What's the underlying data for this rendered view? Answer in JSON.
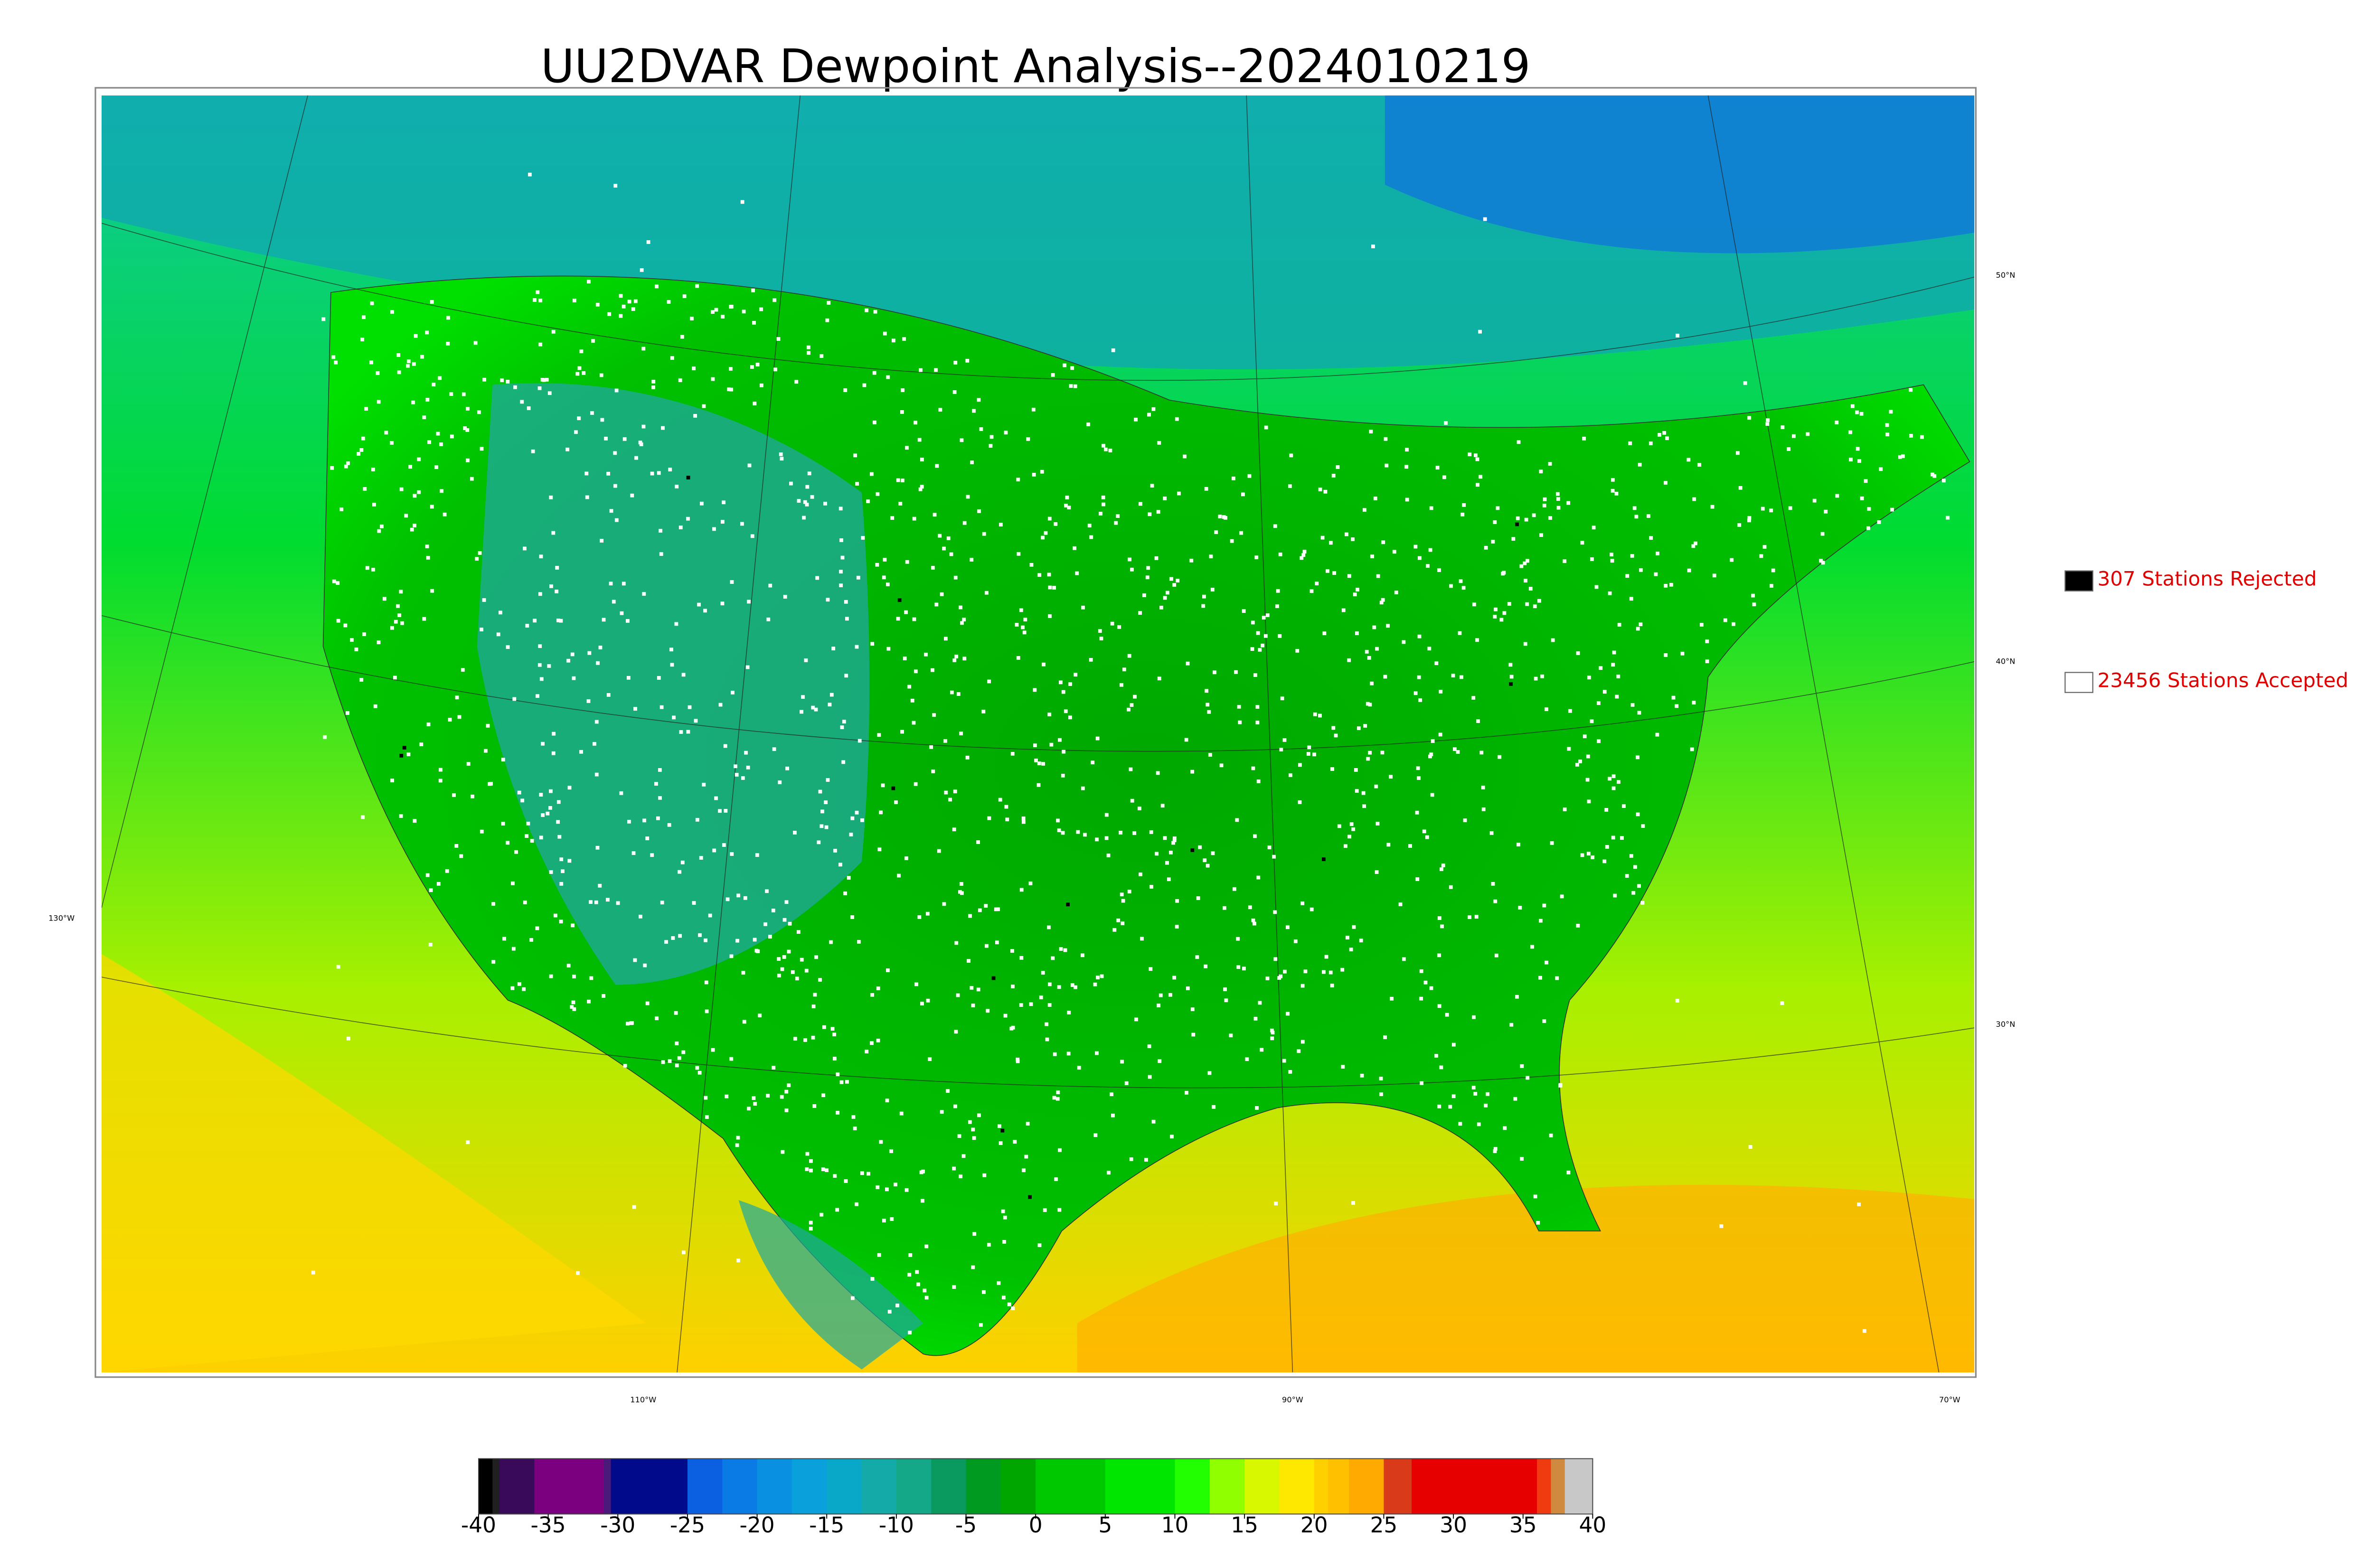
{
  "title": "UU2DVAR Dewpoint Analysis--2024010219",
  "map": {
    "lat_labels": [
      "50°N",
      "40°N",
      "30°N"
    ],
    "lon_labels": [
      "130°W",
      "110°W",
      "90°W",
      "70°W"
    ]
  },
  "legend": [
    {
      "label": "307 Stations Rejected",
      "color": "#000000"
    },
    {
      "label": "23456 Stations Accepted",
      "color": "#ffffff"
    }
  ],
  "colorbar": {
    "lim": [
      -40,
      40
    ],
    "ticks": [
      -40,
      -35,
      -30,
      -25,
      -20,
      -15,
      -10,
      -5,
      0,
      5,
      10,
      15,
      20,
      25,
      30,
      35,
      40
    ],
    "levels": [
      -40,
      -39,
      -38.5,
      -36,
      -31,
      -30.5,
      -25,
      -22.5,
      -20,
      -17.5,
      -15,
      -12.5,
      -10,
      -7.5,
      -5,
      -2.5,
      0,
      5,
      10,
      12.5,
      15,
      17.5,
      20,
      21,
      22.5,
      25,
      27,
      36,
      37,
      38,
      40
    ],
    "colors": [
      "#000000",
      "#202020",
      "#3a0a5a",
      "#7a0080",
      "#4a1a7a",
      "#000a8a",
      "#0a60e0",
      "#0a7ae4",
      "#0a90e0",
      "#0aa0dc",
      "#0aa8c8",
      "#14aaa8",
      "#14a888",
      "#0a9a60",
      "#009a20",
      "#00a600",
      "#00c800",
      "#00e600",
      "#22ff00",
      "#90ff00",
      "#d8f800",
      "#ffe800",
      "#ffd000",
      "#ffc000",
      "#ffaa00",
      "#d83a1a",
      "#e60000",
      "#f03a10",
      "#d08a40",
      "#c8c8c8"
    ]
  }
}
